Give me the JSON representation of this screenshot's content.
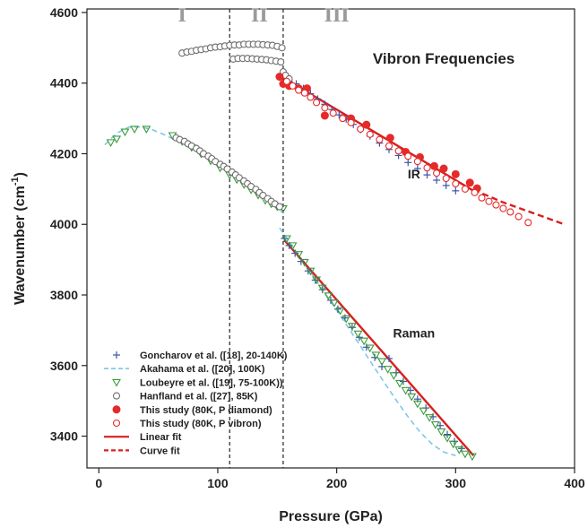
{
  "chart_data": {
    "type": "scatter",
    "title": "",
    "xlabel": "Pressure (GPa)",
    "ylabel_main": "Wavenumber (cm",
    "ylabel_sup": "-1",
    "ylabel_close": ")",
    "xlim": [
      -10,
      400
    ],
    "ylim": [
      3310,
      4610
    ],
    "xticks": [
      0,
      100,
      200,
      300,
      400
    ],
    "yticks": [
      3400,
      3600,
      3800,
      4000,
      4200,
      4400,
      4600
    ],
    "grid": false,
    "legend_placement": "bottom-left",
    "phase_boundaries": [
      110,
      155
    ],
    "phase_labels": [
      {
        "text": "I",
        "x": 70,
        "y": 4575
      },
      {
        "text": "II",
        "x": 135,
        "y": 4575
      },
      {
        "text": "III",
        "x": 200,
        "y": 4575
      }
    ],
    "annotations": [
      {
        "text": "Vibron Frequencies",
        "x": 290,
        "y": 4455,
        "size": 17
      },
      {
        "text": "IR",
        "x": 265,
        "y": 4130,
        "size": 14
      },
      {
        "text": "Raman",
        "x": 265,
        "y": 3680,
        "size": 14
      }
    ],
    "series": [
      {
        "name": "Goncharov et al. ([18], 20-140K)",
        "marker": "plus",
        "color": "#3b55a8",
        "segments": [
          {
            "x": [
              156,
              160,
              165,
              170,
              176,
              182,
              188,
              195,
              201,
              207,
              213,
              219,
              225,
              232,
              238,
              244,
              250,
              256,
              262,
              268,
              275,
              281,
              287,
              293,
              299,
              305
            ],
            "y": [
              3960,
              3940,
              3918,
              3895,
              3868,
              3842,
              3815,
              3785,
              3760,
              3735,
              3708,
              3680,
              3652,
              3623,
              3597,
              3620,
              3580,
              3555,
              3530,
              3505,
              3480,
              3455,
              3430,
              3405,
              3385,
              3365
            ]
          },
          {
            "x": [
              160,
              166,
              172,
              178,
              184,
              190,
              196,
              202,
              208,
              214,
              220,
              228,
              236,
              244,
              252,
              260,
              268,
              276,
              284,
              292,
              300
            ],
            "y": [
              4405,
              4398,
              4385,
              4370,
              4355,
              4340,
              4325,
              4310,
              4298,
              4283,
              4268,
              4250,
              4230,
              4212,
              4195,
              4175,
              4158,
              4140,
              4125,
              4110,
              4095
            ]
          }
        ]
      },
      {
        "name": "Akahama et al. ([20], 100K)",
        "marker": "dashed-line",
        "color": "#7ec8ea",
        "segments": [
          {
            "x": [
              5,
              15,
              25,
              35,
              45,
              55,
              65,
              75,
              85,
              95,
              105,
              115,
              125,
              135,
              145,
              155
            ],
            "y": [
              4225,
              4258,
              4275,
              4276,
              4268,
              4254,
              4238,
              4220,
              4200,
              4180,
              4157,
              4134,
              4110,
              4084,
              4058,
              4032
            ]
          },
          {
            "x": [
              152,
              160,
              170,
              180,
              190,
              200,
              210,
              220,
              230,
              240,
              250,
              260,
              270,
              280,
              290,
              300
            ],
            "y": [
              3990,
              3950,
              3902,
              3855,
              3806,
              3757,
              3706,
              3655,
              3603,
              3552,
              3502,
              3455,
              3412,
              3378,
              3355,
              3345
            ]
          }
        ]
      },
      {
        "name": "Loubeyre et al. ([19], 75-100K))",
        "marker": "triangle-down",
        "color": "#3a9a3a",
        "segments": [
          {
            "x": [
              10,
              15,
              22,
              30,
              40,
              62,
              70,
              78,
              86,
              94,
              102,
              110,
              116,
              122,
              128,
              134,
              140,
              145,
              150,
              155
            ],
            "y": [
              4232,
              4242,
              4262,
              4270,
              4270,
              4252,
              4235,
              4218,
              4200,
              4180,
              4160,
              4140,
              4127,
              4113,
              4098,
              4083,
              4068,
              4058,
              4050,
              4045
            ]
          },
          {
            "x": [
              158,
              163,
              168,
              173,
              178,
              183,
              188,
              193,
              198,
              203,
              208,
              213,
              218,
              223,
              228,
              233,
              238,
              243,
              248,
              253,
              258,
              263,
              268,
              273,
              278,
              283,
              288,
              293,
              298,
              303,
              308,
              314
            ],
            "y": [
              3960,
              3940,
              3915,
              3893,
              3868,
              3843,
              3820,
              3798,
              3778,
              3756,
              3733,
              3712,
              3690,
              3670,
              3650,
              3630,
              3612,
              3590,
              3572,
              3550,
              3530,
              3512,
              3492,
              3472,
              3453,
              3433,
              3413,
              3395,
              3378,
              3362,
              3350,
              3343
            ]
          }
        ]
      },
      {
        "name": "Hanfland et al. ([27], 85K)",
        "marker": "circle-open",
        "color": "#6f6f6f",
        "segments": [
          {
            "x": [
              65,
              68,
              72,
              75,
              78,
              82,
              85,
              88,
              92,
              95,
              98,
              102,
              105,
              108,
              112,
              115,
              118,
              122,
              125,
              128,
              132,
              135,
              138,
              142,
              145,
              148,
              152
            ],
            "y": [
              4245,
              4240,
              4235,
              4228,
              4222,
              4215,
              4208,
              4200,
              4193,
              4186,
              4178,
              4170,
              4164,
              4157,
              4148,
              4140,
              4132,
              4123,
              4115,
              4107,
              4099,
              4090,
              4082,
              4073,
              4065,
              4058,
              4050
            ]
          },
          {
            "x": [
              70,
              74,
              78,
              82,
              86,
              90,
              94,
              98,
              102,
              106,
              110,
              114,
              118,
              122,
              126,
              130,
              134,
              138,
              142,
              146,
              150,
              154
            ],
            "y": [
              4485,
              4488,
              4490,
              4493,
              4495,
              4497,
              4500,
              4502,
              4503,
              4505,
              4507,
              4508,
              4508,
              4510,
              4510,
              4510,
              4510,
              4509,
              4508,
              4507,
              4504,
              4500
            ]
          },
          {
            "x": [
              113,
              117,
              121,
              125,
              129,
              133,
              137,
              141,
              145,
              149,
              153
            ],
            "y": [
              4468,
              4470,
              4470,
              4470,
              4469,
              4468,
              4467,
              4466,
              4464,
              4462,
              4460
            ]
          },
          {
            "x": [
              155,
              157,
              160
            ],
            "y": [
              4432,
              4422,
              4412
            ]
          }
        ]
      },
      {
        "name": "This study (80K, P diamond)",
        "marker": "circle-filled",
        "color": "#e52a2a",
        "segments": [
          {
            "x": [
              152,
              155,
              160,
              168,
              175,
              190,
              212,
              225,
              245,
              258,
              270,
              282,
              290,
              300,
              312,
              318
            ],
            "y": [
              4418,
              4398,
              4392,
              4385,
              4385,
              4308,
              4300,
              4282,
              4245,
              4205,
              4190,
              4165,
              4158,
              4142,
              4118,
              4102
            ]
          }
        ]
      },
      {
        "name": "This study (80K, P vibron)",
        "marker": "circle-open",
        "color": "#e52a2a",
        "segments": [
          {
            "x": [
              158,
              163,
              168,
              173,
              178,
              183,
              190,
              197,
              205,
              212,
              220,
              228,
              236,
              244,
              252,
              260,
              268,
              276,
              284,
              292,
              300,
              308,
              316,
              322,
              328,
              334,
              340,
              346,
              353,
              361
            ],
            "y": [
              4405,
              4392,
              4380,
              4372,
              4360,
              4345,
              4330,
              4315,
              4300,
              4288,
              4270,
              4255,
              4240,
              4222,
              4208,
              4193,
              4178,
              4160,
              4145,
              4130,
              4115,
              4100,
              4090,
              4075,
              4065,
              4055,
              4045,
              4035,
              4022,
              4005
            ]
          }
        ]
      },
      {
        "name": "Linear fit",
        "marker": "solid-line",
        "color": "#d81f1f",
        "segments": [
          {
            "x": [
              156,
              315
            ],
            "y": [
              3955,
              3345
            ]
          },
          {
            "x": [
              150,
              315
            ],
            "y": [
              4425,
              4095
            ]
          }
        ]
      },
      {
        "name": "Curve fit",
        "marker": "dashed-line",
        "color": "#d81f1f",
        "segments": [
          {
            "x": [
              315,
              340,
              365,
              390
            ],
            "y": [
              4098,
              4062,
              4032,
              4002
            ]
          }
        ]
      }
    ]
  }
}
